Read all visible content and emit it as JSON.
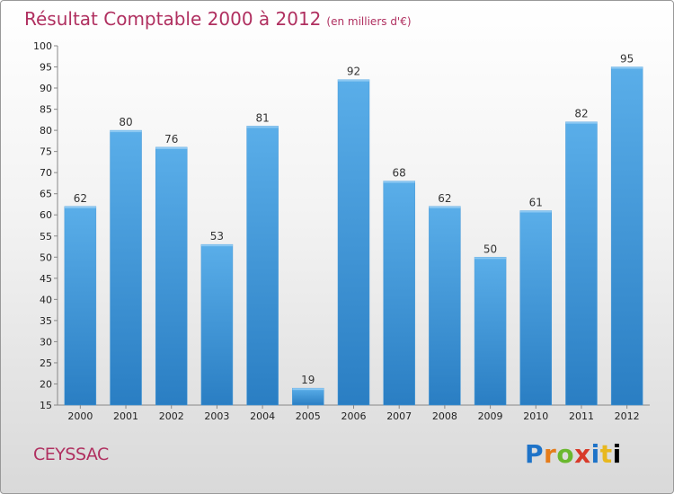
{
  "header": {
    "title": "Résultat Comptable 2000 à 2012",
    "subtitle": "(en milliers d'€)"
  },
  "footer": {
    "commune": "CEYSSAC",
    "brand": [
      "P",
      "r",
      "o",
      "x",
      "i",
      "t",
      "i"
    ]
  },
  "colors": {
    "bar_top": "#5aaee9",
    "bar_bottom": "#2a7ec3",
    "title": "#b03060"
  },
  "chart_data": {
    "type": "bar",
    "title": "Résultat Comptable 2000 à 2012",
    "xlabel": "",
    "ylabel": "en milliers d'€",
    "categories": [
      "2000",
      "2001",
      "2002",
      "2003",
      "2004",
      "2005",
      "2006",
      "2007",
      "2008",
      "2009",
      "2010",
      "2011",
      "2012"
    ],
    "values": [
      62,
      80,
      76,
      53,
      81,
      19,
      92,
      68,
      62,
      50,
      61,
      82,
      95
    ],
    "ylim": [
      15,
      100
    ],
    "yticks": [
      15,
      20,
      25,
      30,
      35,
      40,
      45,
      50,
      55,
      60,
      65,
      70,
      75,
      80,
      85,
      90,
      95,
      100
    ],
    "grid": false
  }
}
